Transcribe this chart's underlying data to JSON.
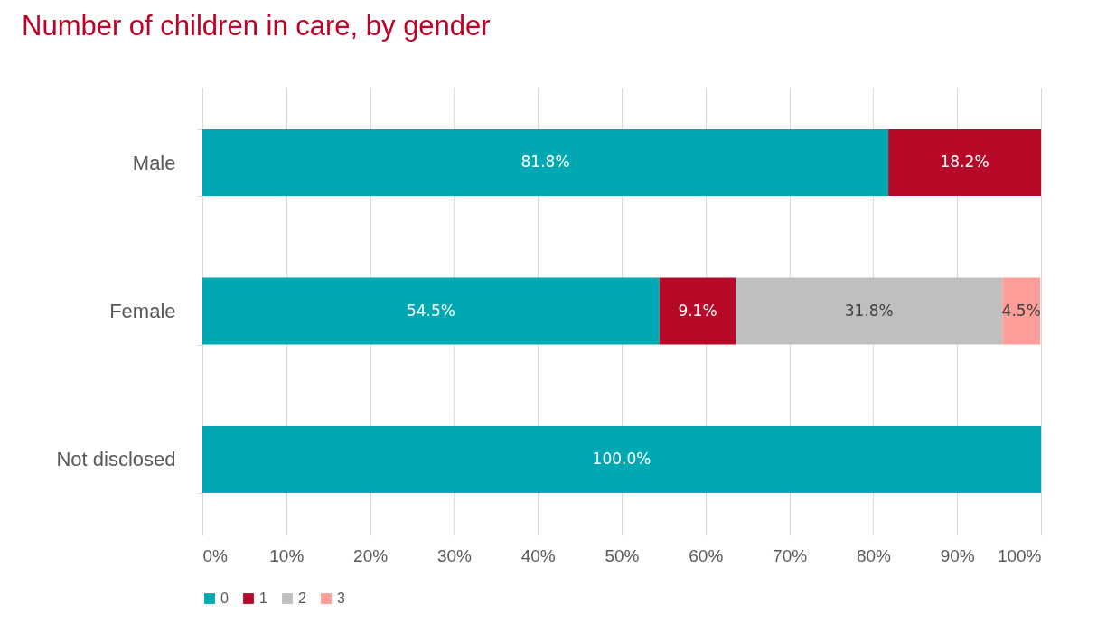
{
  "chart_data": {
    "type": "bar",
    "title": "Number of children in care, by gender",
    "orientation": "horizontal",
    "stacked": true,
    "categories": [
      "Male",
      "Female",
      "Not disclosed"
    ],
    "series": [
      {
        "name": "0",
        "color": "#00a9b2",
        "values": [
          81.8,
          54.5,
          100.0
        ],
        "value_labels": [
          "81.8%",
          "54.5%",
          "100.0%"
        ]
      },
      {
        "name": "1",
        "color": "#b70a28",
        "values": [
          18.2,
          9.1,
          null
        ],
        "value_labels": [
          "18.2%",
          "9.1%",
          null
        ]
      },
      {
        "name": "2",
        "color": "#bfbfbf",
        "values": [
          null,
          31.8,
          null
        ],
        "value_labels": [
          null,
          "31.8%",
          null
        ]
      },
      {
        "name": "3",
        "color": "#ff9d98",
        "values": [
          null,
          4.5,
          null
        ],
        "value_labels": [
          null,
          "4.5%",
          null
        ]
      }
    ],
    "xlim": [
      0,
      100
    ],
    "xticks": [
      {
        "value": 0,
        "label": "0%"
      },
      {
        "value": 10,
        "label": "10%"
      },
      {
        "value": 20,
        "label": "20%"
      },
      {
        "value": 30,
        "label": "30%"
      },
      {
        "value": 40,
        "label": "40%"
      },
      {
        "value": 50,
        "label": "50%"
      },
      {
        "value": 60,
        "label": "60%"
      },
      {
        "value": 70,
        "label": "70%"
      },
      {
        "value": 80,
        "label": "80%"
      },
      {
        "value": 90,
        "label": "90%"
      },
      {
        "value": 100,
        "label": "100%"
      }
    ],
    "grid": "x",
    "legend": "bottom"
  }
}
